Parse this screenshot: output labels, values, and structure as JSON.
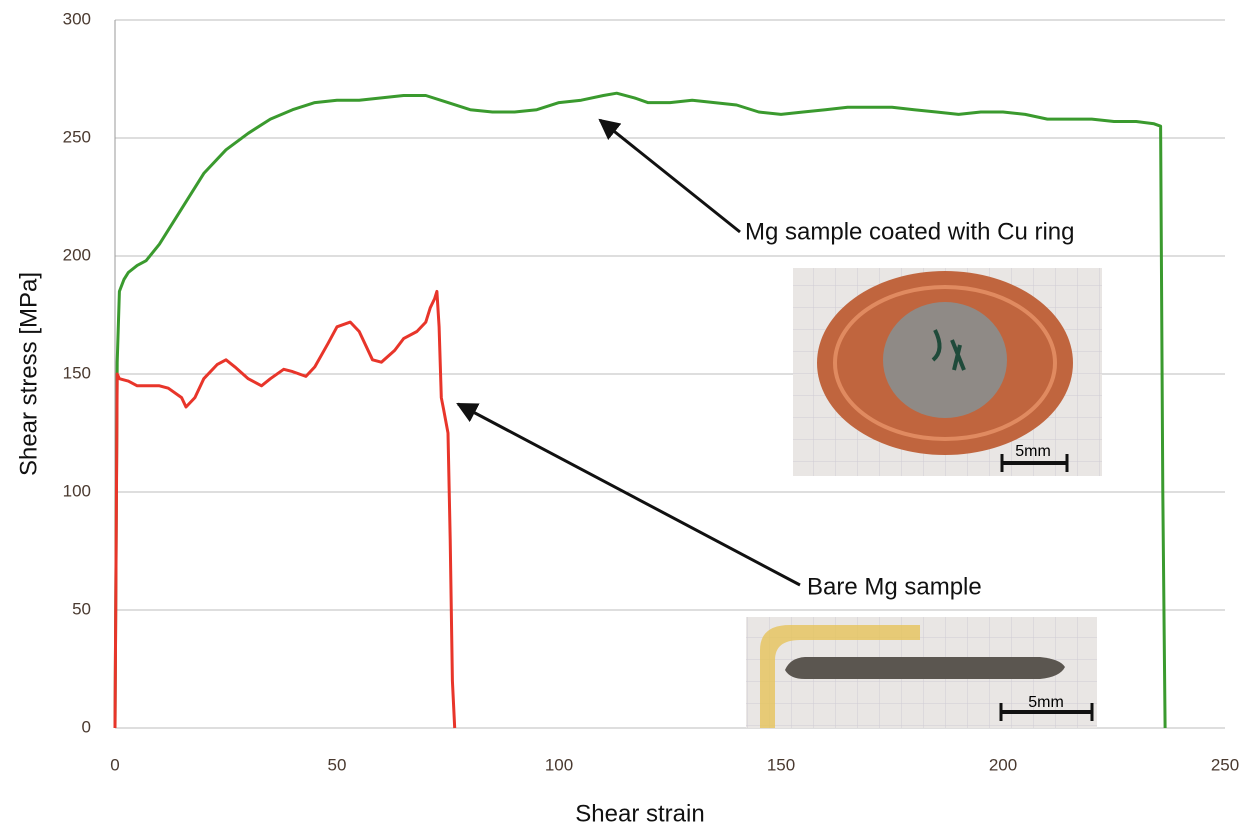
{
  "chart_data": {
    "type": "line",
    "xlabel": "Shear strain",
    "ylabel": "Shear stress [MPa]",
    "xlim": [
      0,
      250
    ],
    "ylim": [
      0,
      300
    ],
    "xticks": [
      0,
      50,
      100,
      150,
      200,
      250
    ],
    "yticks": [
      0,
      50,
      100,
      150,
      200,
      250,
      300
    ],
    "grid": true,
    "series": [
      {
        "name": "Mg sample coated with Cu ring",
        "color": "#3a9a2e",
        "x": [
          0,
          0.5,
          1,
          2,
          3,
          5,
          7,
          10,
          15,
          20,
          25,
          30,
          35,
          40,
          45,
          50,
          55,
          60,
          65,
          70,
          75,
          80,
          85,
          90,
          95,
          100,
          105,
          110,
          113,
          117,
          120,
          125,
          130,
          135,
          140,
          145,
          150,
          155,
          160,
          165,
          170,
          175,
          180,
          185,
          190,
          195,
          200,
          205,
          210,
          215,
          220,
          225,
          230,
          234,
          235.5,
          236,
          236.5
        ],
        "values": [
          0,
          155,
          185,
          190,
          193,
          196,
          198,
          205,
          220,
          235,
          245,
          252,
          258,
          262,
          265,
          266,
          266,
          267,
          268,
          268,
          265,
          262,
          261,
          261,
          262,
          265,
          266,
          268,
          269,
          267,
          265,
          265,
          266,
          265,
          264,
          261,
          260,
          261,
          262,
          263,
          263,
          263,
          262,
          261,
          260,
          261,
          261,
          260,
          258,
          258,
          258,
          257,
          257,
          256,
          255,
          100,
          0
        ]
      },
      {
        "name": "Bare Mg sample",
        "color": "#e8352a",
        "x": [
          0,
          0.5,
          1,
          3,
          5,
          8,
          10,
          12,
          15,
          16,
          18,
          20,
          23,
          25,
          27,
          30,
          33,
          35,
          38,
          40,
          43,
          45,
          48,
          50,
          53,
          55,
          58,
          60,
          63,
          65,
          68,
          70,
          71,
          72,
          72.5,
          73,
          73.5,
          74,
          75,
          75.5,
          76,
          76.5
        ],
        "values": [
          0,
          150,
          148,
          147,
          145,
          145,
          145,
          144,
          140,
          136,
          140,
          148,
          154,
          156,
          153,
          148,
          145,
          148,
          152,
          151,
          149,
          153,
          163,
          170,
          172,
          168,
          156,
          155,
          160,
          165,
          168,
          172,
          178,
          182,
          185,
          170,
          140,
          135,
          125,
          80,
          20,
          0
        ]
      }
    ],
    "inset_labels": [
      "5mm",
      "5mm"
    ]
  }
}
